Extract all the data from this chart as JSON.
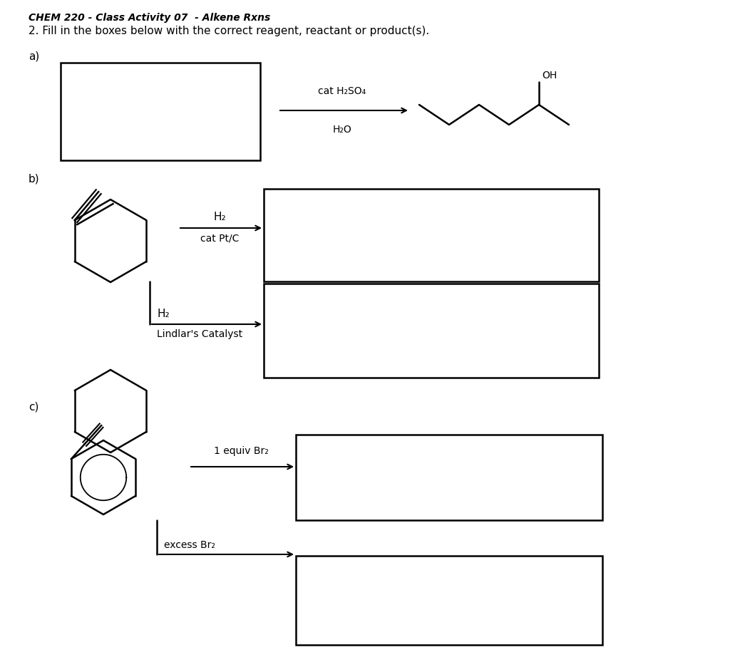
{
  "title": "CHEM 220 - Class Activity 07  - Alkene Rxns",
  "instruction": "2. Fill in the boxes below with the correct reagent, reactant or product(s).",
  "background": "#ffffff",
  "a_label": "a)",
  "b_label": "b)",
  "c_label": "c)",
  "a_line1": "cat H₂SO₄",
  "a_line2": "H₂O",
  "b_top_line1": "H₂",
  "b_top_line2": "cat Pt/C",
  "b_bot_line1": "H₂",
  "b_bot_line2": "Lindlar's Catalyst",
  "c_top": "1 equiv Br₂",
  "c_bot": "excess Br₂",
  "oh_label": "OH"
}
